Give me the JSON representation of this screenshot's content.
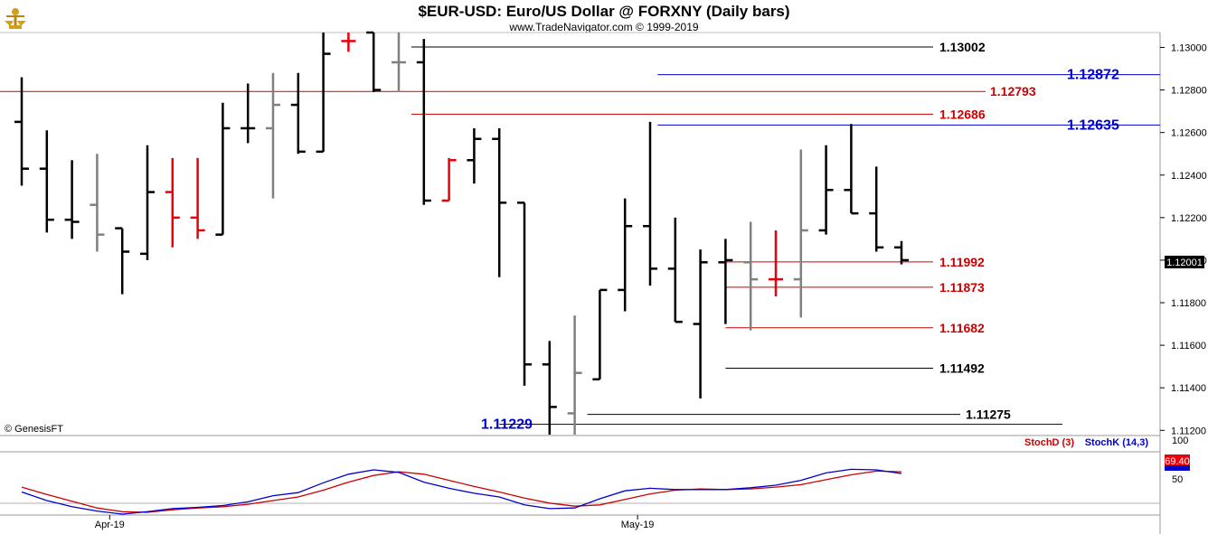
{
  "header": {
    "title": "$EUR-USD:  Euro/US Dollar @ FORXNY  (Daily bars)",
    "subtitle": "www.TradeNavigator.com © 1999-2019"
  },
  "watermark": "© GenesisFT",
  "colors": {
    "black_bar": "#000000",
    "gray_bar": "#808080",
    "red_bar": "#e8000b",
    "red_level": "#cc0000",
    "blue_level": "#0000cc",
    "stoch_d": "#cc0000",
    "stoch_k": "#0000cc"
  },
  "price_axis": {
    "ylim": [
      1.1118,
      1.1307
    ],
    "ticks": [
      "1.13000",
      "1.12800",
      "1.12600",
      "1.12400",
      "1.12200",
      "1.12000",
      "1.11800",
      "1.11600",
      "1.11400",
      "1.11200"
    ],
    "current_price_label": "1.12001"
  },
  "time_axis": {
    "labels": [
      {
        "text": "Apr-19",
        "index": 3.5
      },
      {
        "text": "May-19",
        "index": 24.5
      }
    ]
  },
  "chart_data": {
    "type": "ohlc",
    "bars": [
      {
        "o": 1.1265,
        "h": 1.1286,
        "l": 1.1235,
        "c": 1.1243,
        "color": "black"
      },
      {
        "o": 1.1243,
        "h": 1.1261,
        "l": 1.1213,
        "c": 1.1219,
        "color": "black"
      },
      {
        "o": 1.1219,
        "h": 1.1247,
        "l": 1.121,
        "c": 1.1218,
        "color": "black"
      },
      {
        "o": 1.1226,
        "h": 1.125,
        "l": 1.1204,
        "c": 1.1212,
        "color": "gray"
      },
      {
        "o": 1.1215,
        "h": 1.1215,
        "l": 1.1184,
        "c": 1.1204,
        "color": "black"
      },
      {
        "o": 1.1203,
        "h": 1.1254,
        "l": 1.12,
        "c": 1.1232,
        "color": "black"
      },
      {
        "o": 1.1232,
        "h": 1.1248,
        "l": 1.1206,
        "c": 1.122,
        "color": "red"
      },
      {
        "o": 1.122,
        "h": 1.1248,
        "l": 1.121,
        "c": 1.1214,
        "color": "red"
      },
      {
        "o": 1.1212,
        "h": 1.1274,
        "l": 1.1212,
        "c": 1.1262,
        "color": "black"
      },
      {
        "o": 1.1262,
        "h": 1.1283,
        "l": 1.1255,
        "c": 1.1262,
        "color": "black"
      },
      {
        "o": 1.1262,
        "h": 1.1288,
        "l": 1.1229,
        "c": 1.1273,
        "color": "gray"
      },
      {
        "o": 1.1273,
        "h": 1.1288,
        "l": 1.125,
        "c": 1.1251,
        "color": "black"
      },
      {
        "o": 1.1251,
        "h": 1.1307,
        "l": 1.1251,
        "c": 1.1297,
        "color": "black"
      },
      {
        "o": 1.1303,
        "h": 1.1307,
        "l": 1.1298,
        "c": 1.1303,
        "color": "red"
      },
      {
        "o": 1.1307,
        "h": 1.1307,
        "l": 1.1279,
        "c": 1.128,
        "color": "black"
      },
      {
        "o": 1.1293,
        "h": 1.1307,
        "l": 1.1279,
        "c": 1.1293,
        "color": "gray"
      },
      {
        "o": 1.1293,
        "h": 1.1304,
        "l": 1.1226,
        "c": 1.1228,
        "color": "black"
      },
      {
        "o": 1.1228,
        "h": 1.1248,
        "l": 1.1228,
        "c": 1.1247,
        "color": "red"
      },
      {
        "o": 1.1247,
        "h": 1.1262,
        "l": 1.1236,
        "c": 1.1257,
        "color": "black"
      },
      {
        "o": 1.1257,
        "h": 1.1262,
        "l": 1.1192,
        "c": 1.1227,
        "color": "black"
      },
      {
        "o": 1.1227,
        "h": 1.1227,
        "l": 1.1141,
        "c": 1.1151,
        "color": "black"
      },
      {
        "o": 1.1151,
        "h": 1.1162,
        "l": 1.1118,
        "c": 1.1131,
        "color": "black"
      },
      {
        "o": 1.1128,
        "h": 1.1174,
        "l": 1.1118,
        "c": 1.1147,
        "color": "gray"
      },
      {
        "o": 1.1144,
        "h": 1.1186,
        "l": 1.1144,
        "c": 1.1186,
        "color": "black"
      },
      {
        "o": 1.1186,
        "h": 1.1229,
        "l": 1.1176,
        "c": 1.1216,
        "color": "black"
      },
      {
        "o": 1.1216,
        "h": 1.1265,
        "l": 1.1188,
        "c": 1.1196,
        "color": "black"
      },
      {
        "o": 1.1196,
        "h": 1.122,
        "l": 1.1171,
        "c": 1.1171,
        "color": "black"
      },
      {
        "o": 1.117,
        "h": 1.1205,
        "l": 1.1135,
        "c": 1.1199,
        "color": "black"
      },
      {
        "o": 1.1199,
        "h": 1.121,
        "l": 1.117,
        "c": 1.12,
        "color": "black"
      },
      {
        "o": 1.1199,
        "h": 1.1218,
        "l": 1.1167,
        "c": 1.1191,
        "color": "gray"
      },
      {
        "o": 1.1191,
        "h": 1.1214,
        "l": 1.1183,
        "c": 1.1191,
        "color": "red"
      },
      {
        "o": 1.1191,
        "h": 1.1252,
        "l": 1.1173,
        "c": 1.1214,
        "color": "gray"
      },
      {
        "o": 1.1214,
        "h": 1.1254,
        "l": 1.1212,
        "c": 1.1233,
        "color": "black"
      },
      {
        "o": 1.1233,
        "h": 1.1264,
        "l": 1.1222,
        "c": 1.1222,
        "color": "black"
      },
      {
        "o": 1.1222,
        "h": 1.1244,
        "l": 1.1204,
        "c": 1.1206,
        "color": "black"
      },
      {
        "o": 1.1206,
        "h": 1.1209,
        "l": 1.1198,
        "c": 1.12,
        "color": "black"
      }
    ],
    "levels": [
      {
        "value": 1.13002,
        "label": "1.13002",
        "color": "black",
        "from_index": 15.5,
        "style": "normal"
      },
      {
        "value": 1.12872,
        "label": "1.12872",
        "color": "blue",
        "from_index": 25.3,
        "style": "big"
      },
      {
        "value": 1.12793,
        "label": "1.12793",
        "color": "red",
        "from_index": -1,
        "style": "normal"
      },
      {
        "value": 1.12686,
        "label": "1.12686",
        "color": "red",
        "from_index": 15.5,
        "style": "normal"
      },
      {
        "value": 1.12635,
        "label": "1.12635",
        "color": "blue",
        "from_index": 25.3,
        "style": "big"
      },
      {
        "value": 1.11992,
        "label": "1.11992",
        "color": "red",
        "from_index": 28,
        "style": "normal"
      },
      {
        "value": 1.11873,
        "label": "1.11873",
        "color": "red",
        "from_index": 28,
        "style": "normal"
      },
      {
        "value": 1.11682,
        "label": "1.11682",
        "color": "red",
        "from_index": 28,
        "style": "normal"
      },
      {
        "value": 1.11492,
        "label": "1.11492",
        "color": "black",
        "from_index": 28,
        "style": "normal"
      },
      {
        "value": 1.11275,
        "label": "1.11275",
        "color": "black",
        "from_index": 22.5,
        "style": "normal"
      },
      {
        "value": 1.11229,
        "label": "1.11229",
        "color": "blue",
        "from_index": 19,
        "style": "big-left"
      }
    ]
  },
  "stochastic": {
    "legend_d": "StochD (3)",
    "legend_k": "StochK (14,3)",
    "axis_top_label": "100",
    "axis_mid_label": "50",
    "value_label": "69.40",
    "ylim": [
      0,
      100
    ],
    "k": [
      36,
      22,
      12,
      5,
      0,
      4,
      9,
      11,
      14,
      20,
      30,
      35,
      51,
      65,
      72,
      68,
      52,
      42,
      34,
      28,
      15,
      9,
      10,
      25,
      38,
      42,
      40,
      40,
      40,
      43,
      47,
      55,
      67,
      73,
      72,
      66
    ],
    "d": [
      44,
      32,
      21,
      10,
      4,
      3,
      7,
      10,
      12,
      16,
      22,
      28,
      39,
      52,
      63,
      69,
      65,
      55,
      45,
      36,
      26,
      18,
      13,
      15,
      24,
      33,
      39,
      41,
      40,
      41,
      44,
      48,
      56,
      64,
      70,
      69
    ]
  }
}
